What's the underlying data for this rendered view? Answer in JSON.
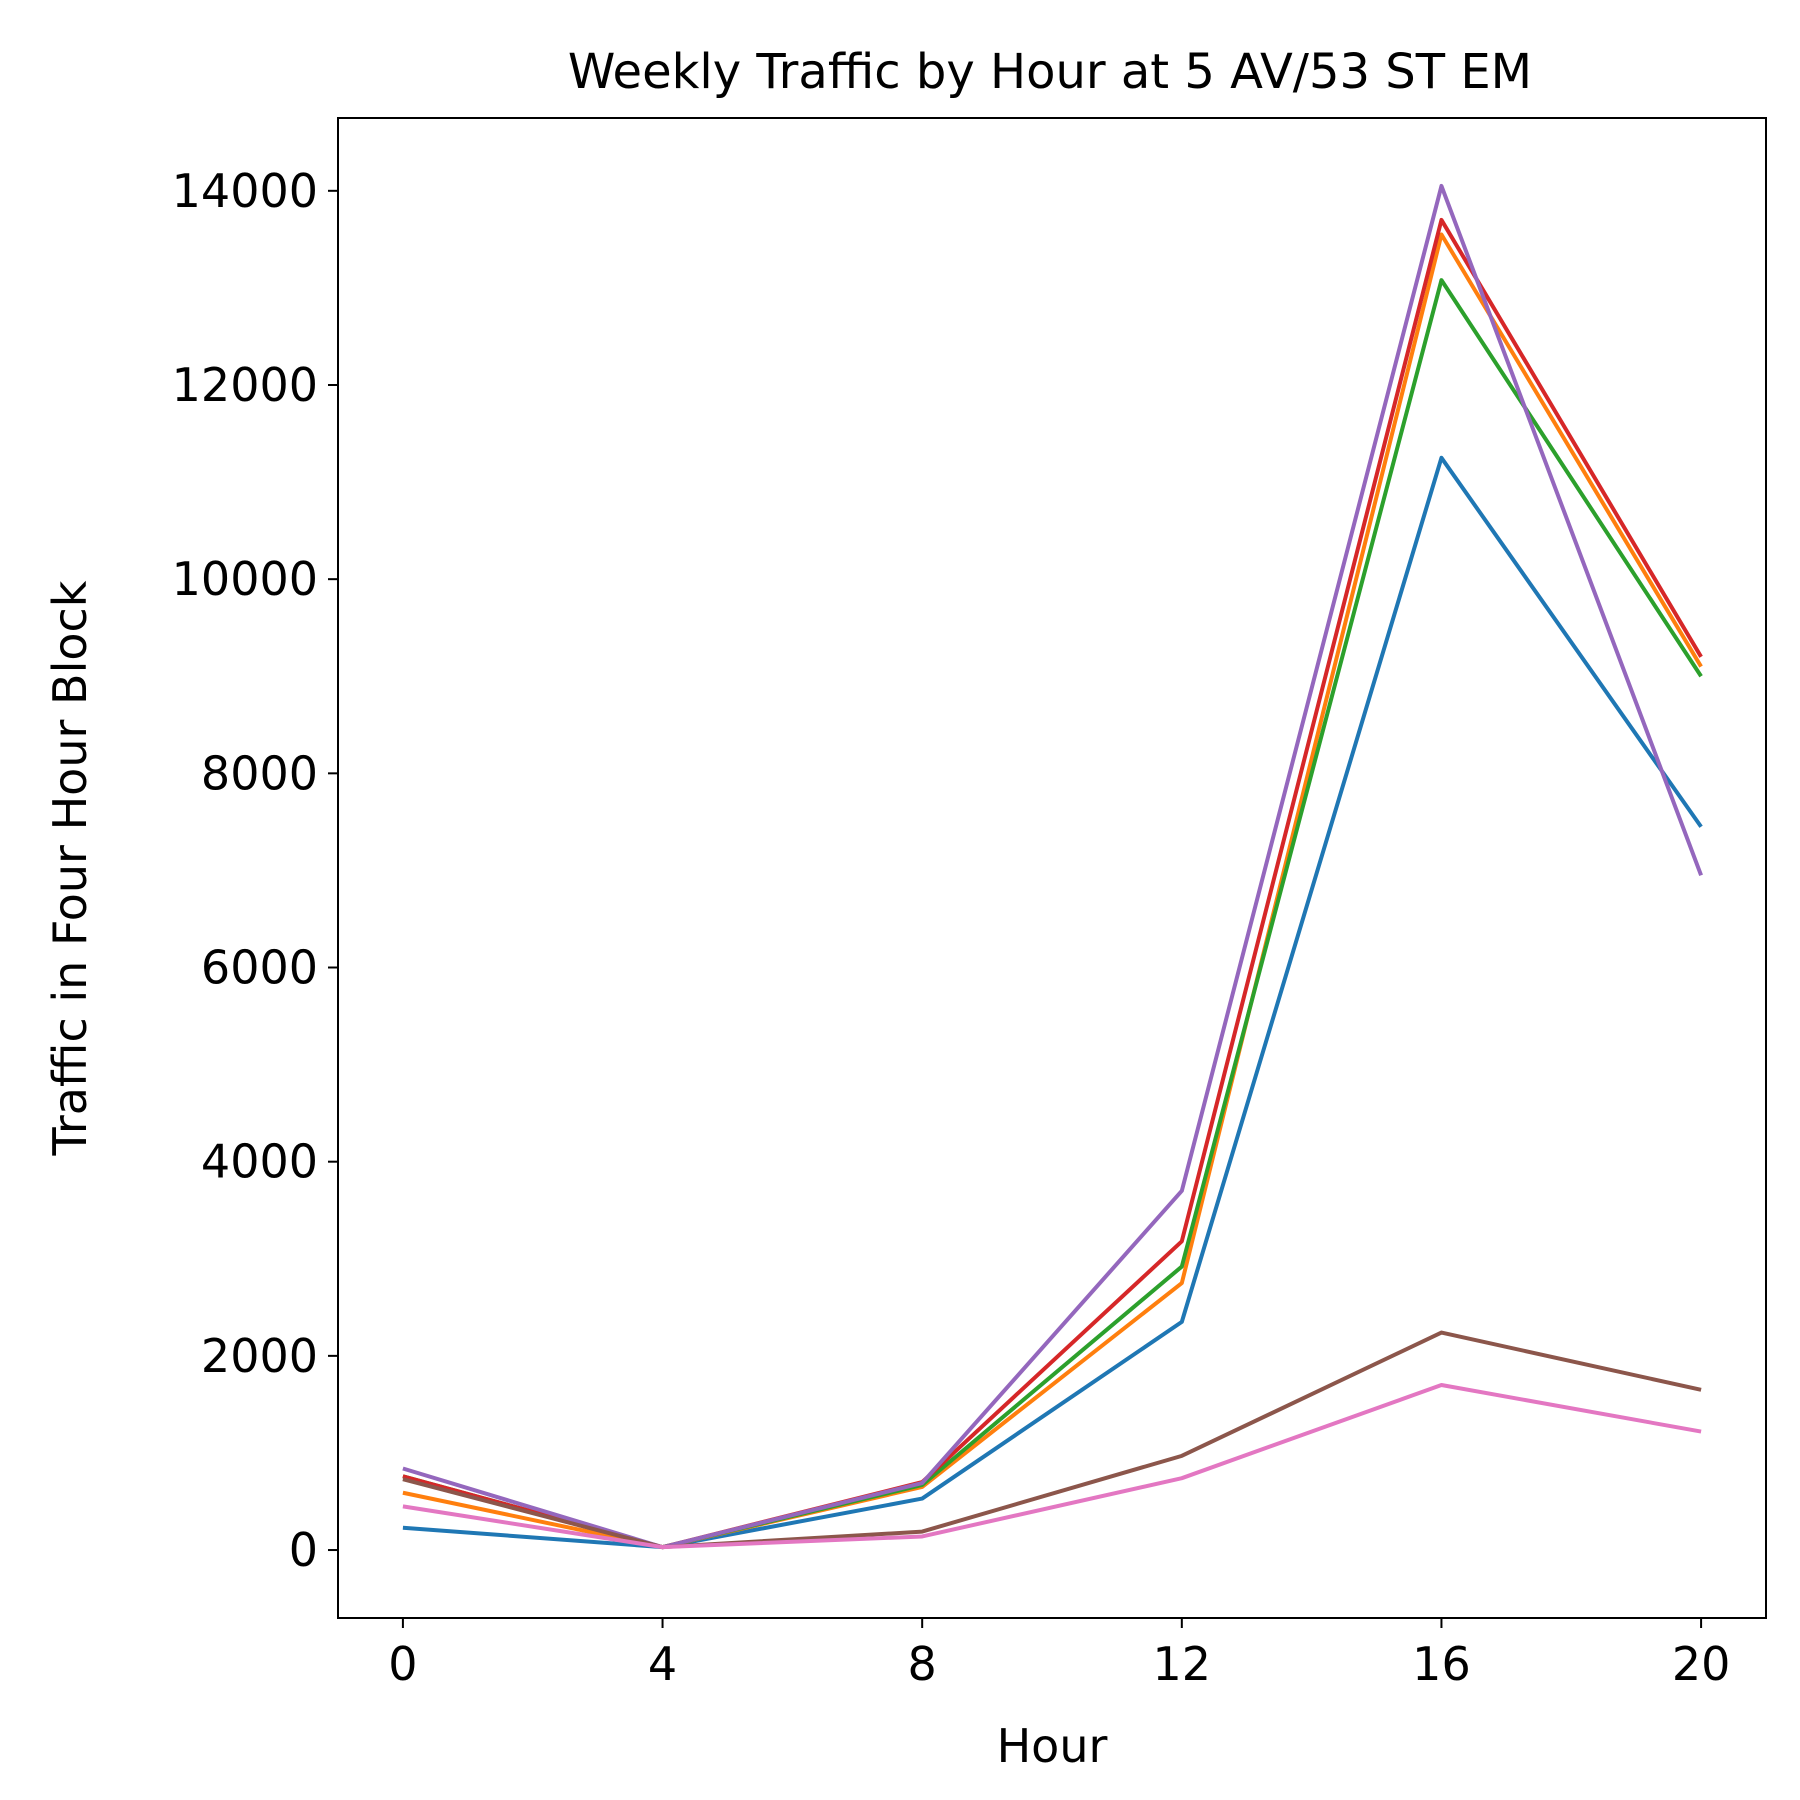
{
  "chart_data": {
    "type": "line",
    "title": "Weekly Traffic by Hour at 5 AV/53 ST EM",
    "xlabel": "Hour",
    "ylabel": "Traffic in Four Hour Block",
    "x": [
      0,
      4,
      8,
      12,
      16,
      20
    ],
    "xticks": [
      0,
      4,
      8,
      12,
      16,
      20
    ],
    "xlim": [
      -1,
      21
    ],
    "yticks": [
      0,
      2000,
      4000,
      6000,
      8000,
      10000,
      12000,
      14000
    ],
    "ylim": [
      -700,
      14750
    ],
    "grid": false,
    "legend": "none",
    "series": [
      {
        "name": "series-1",
        "color": "#1f77b4",
        "values": [
          230,
          30,
          530,
          2350,
          11250,
          7450
        ]
      },
      {
        "name": "series-2",
        "color": "#ff7f0e",
        "values": [
          590,
          30,
          650,
          2750,
          13550,
          9100
        ]
      },
      {
        "name": "series-3",
        "color": "#2ca02c",
        "values": [
          760,
          30,
          670,
          2920,
          13080,
          9000
        ]
      },
      {
        "name": "series-4",
        "color": "#d62728",
        "values": [
          760,
          30,
          700,
          3180,
          13700,
          9200
        ]
      },
      {
        "name": "series-5",
        "color": "#9467bd",
        "values": [
          840,
          30,
          690,
          3700,
          14050,
          6950
        ]
      },
      {
        "name": "series-6",
        "color": "#8c564b",
        "values": [
          730,
          30,
          190,
          970,
          2240,
          1650
        ]
      },
      {
        "name": "series-7",
        "color": "#e377c2",
        "values": [
          450,
          30,
          140,
          740,
          1700,
          1220
        ]
      }
    ]
  }
}
